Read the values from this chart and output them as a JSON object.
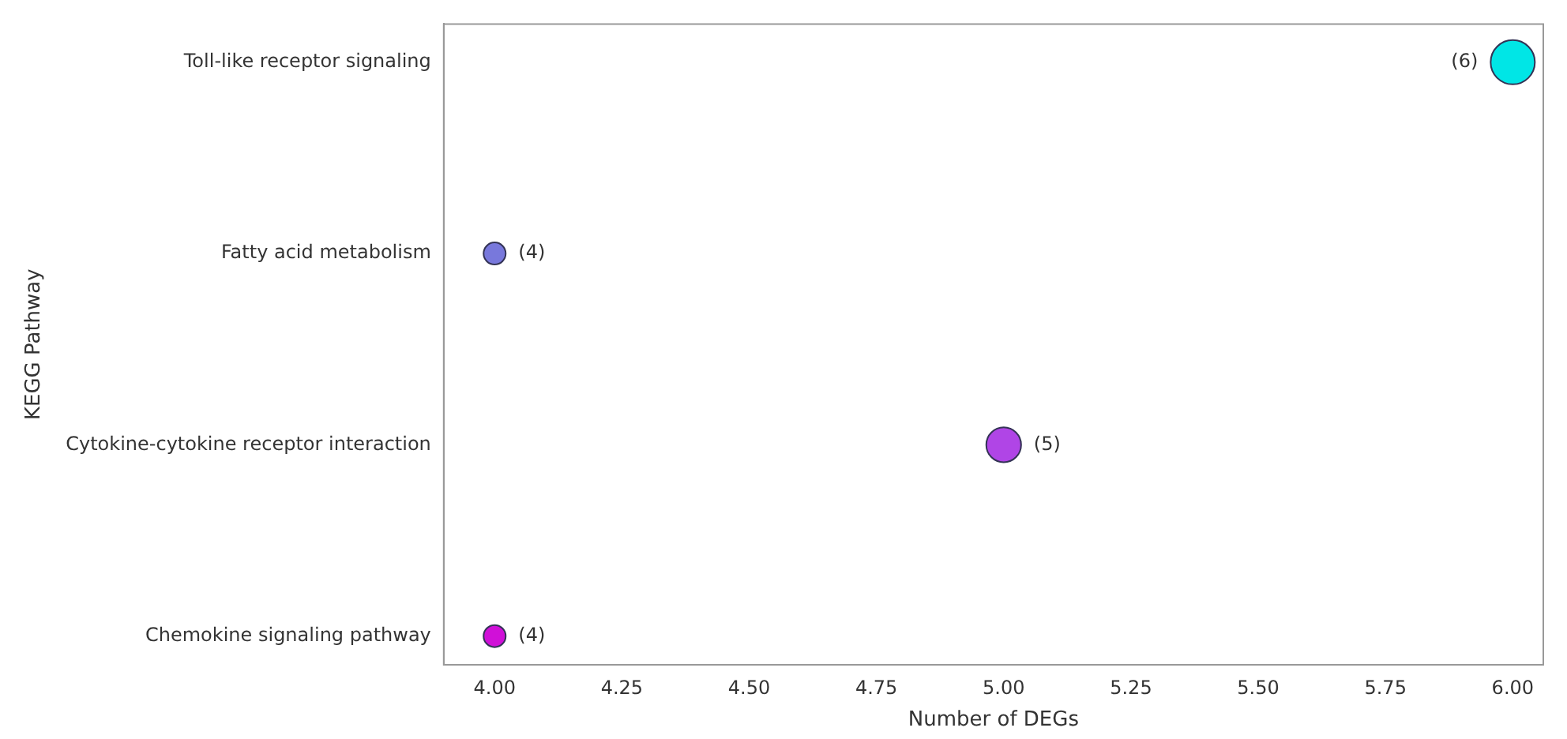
{
  "chart_data": {
    "type": "bubble",
    "orientation": "horizontal",
    "xlabel": "Number of DEGs",
    "ylabel": "KEGG Pathway",
    "categories": [
      "Toll-like receptor signaling",
      "Fatty acid metabolism",
      "Cytokine-cytokine receptor interaction",
      "Chemokine signaling pathway"
    ],
    "values": [
      6,
      4,
      5,
      4
    ],
    "sizes": [
      1,
      0.25,
      0.62,
      0.25
    ],
    "colors": [
      "#00e6e6",
      "#7878dc",
      "#b045e6",
      "#d010d8"
    ],
    "value_labels": [
      "(6)",
      "(4)",
      "(5)",
      "(4)"
    ],
    "xlim": [
      3.9,
      6.06
    ],
    "xticks": [
      {
        "value": 4,
        "label": "4.00"
      },
      {
        "value": 4.25,
        "label": "4.25"
      },
      {
        "value": 4.5,
        "label": "4.50"
      },
      {
        "value": 4.75,
        "label": "4.75"
      },
      {
        "value": 5,
        "label": "5.00"
      },
      {
        "value": 5.25,
        "label": "5.25"
      },
      {
        "value": 5.5,
        "label": "5.50"
      },
      {
        "value": 5.75,
        "label": "5.75"
      },
      {
        "value": 6,
        "label": "6.00"
      }
    ],
    "grid": false,
    "legend": false
  }
}
